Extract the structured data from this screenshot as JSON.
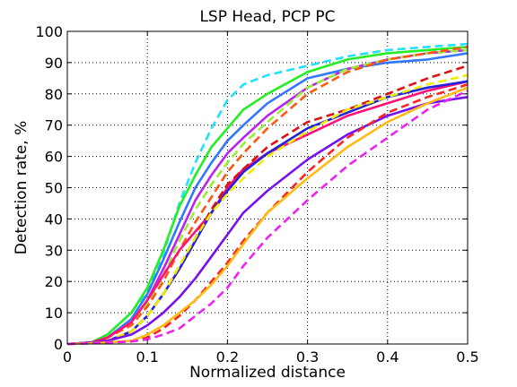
{
  "chart_data": {
    "type": "line",
    "title": "LSP Head, PCP PC",
    "xlabel": "Normalized distance",
    "ylabel": "Detection rate, %",
    "xlim": [
      0,
      0.5
    ],
    "ylim": [
      0,
      100
    ],
    "xticks": [
      "0",
      "0.1",
      "0.2",
      "0.3",
      "0.4",
      "0.5"
    ],
    "yticks": [
      "0",
      "10",
      "20",
      "30",
      "40",
      "50",
      "60",
      "70",
      "80",
      "90",
      "100"
    ],
    "grid": true,
    "legend": "none",
    "series": [
      {
        "color": "#22e0ff",
        "style": "dashed",
        "x": [
          0,
          0.03,
          0.05,
          0.08,
          0.1,
          0.12,
          0.14,
          0.16,
          0.18,
          0.2,
          0.22,
          0.25,
          0.3,
          0.35,
          0.4,
          0.45,
          0.5
        ],
        "y": [
          0,
          0.5,
          3,
          10,
          17,
          29,
          45,
          58,
          69,
          78,
          83,
          86,
          89,
          92,
          94,
          95,
          96
        ]
      },
      {
        "color": "#22ee22",
        "style": "solid",
        "x": [
          0,
          0.03,
          0.05,
          0.08,
          0.1,
          0.12,
          0.14,
          0.16,
          0.18,
          0.2,
          0.22,
          0.25,
          0.3,
          0.35,
          0.4,
          0.45,
          0.5
        ],
        "y": [
          0,
          0.5,
          3,
          10,
          18,
          30,
          44,
          54,
          63,
          69,
          75,
          80,
          87,
          91,
          93,
          94,
          95
        ]
      },
      {
        "color": "#3377ff",
        "style": "solid",
        "x": [
          0,
          0.03,
          0.05,
          0.08,
          0.1,
          0.12,
          0.14,
          0.16,
          0.18,
          0.2,
          0.22,
          0.25,
          0.3,
          0.35,
          0.4,
          0.45,
          0.5
        ],
        "y": [
          0,
          0.5,
          2,
          8,
          16,
          27,
          39,
          50,
          58,
          65,
          70,
          77,
          85,
          88,
          90,
          91,
          93
        ]
      },
      {
        "color": "#bb22ee",
        "style": "solid",
        "x": [
          0,
          0.03,
          0.05,
          0.08,
          0.1,
          0.12,
          0.14,
          0.16,
          0.18,
          0.2,
          0.22,
          0.25,
          0.3,
          0.35,
          0.4,
          0.45,
          0.5
        ],
        "y": [
          0,
          0.5,
          2,
          7,
          14,
          24,
          35,
          46,
          54,
          61,
          66,
          73,
          82,
          88,
          91,
          93,
          94
        ]
      },
      {
        "color": "#99ee33",
        "style": "dashed",
        "x": [
          0,
          0.03,
          0.05,
          0.08,
          0.1,
          0.12,
          0.14,
          0.16,
          0.18,
          0.2,
          0.22,
          0.25,
          0.3,
          0.35,
          0.4,
          0.45,
          0.5
        ],
        "y": [
          0,
          0.5,
          2,
          7,
          13,
          22,
          33,
          43,
          51,
          58,
          64,
          71,
          82,
          88,
          91,
          93,
          94
        ]
      },
      {
        "color": "#ff5511",
        "style": "dashed",
        "x": [
          0,
          0.03,
          0.05,
          0.08,
          0.1,
          0.12,
          0.14,
          0.16,
          0.18,
          0.2,
          0.22,
          0.25,
          0.3,
          0.35,
          0.4,
          0.45,
          0.5
        ],
        "y": [
          0,
          0.5,
          2,
          6,
          12,
          20,
          30,
          39,
          47,
          55,
          61,
          69,
          80,
          87,
          91,
          93,
          95
        ]
      },
      {
        "color": "#ff1177",
        "style": "solid",
        "x": [
          0,
          0.03,
          0.05,
          0.08,
          0.1,
          0.12,
          0.14,
          0.16,
          0.18,
          0.2,
          0.22,
          0.25,
          0.3,
          0.35,
          0.4,
          0.45,
          0.5
        ],
        "y": [
          0,
          0.5,
          2,
          7,
          14,
          22,
          30,
          36,
          42,
          50,
          56,
          61,
          67,
          73,
          77,
          81,
          84
        ]
      },
      {
        "color": "#dd1111",
        "style": "dashed",
        "x": [
          0,
          0.03,
          0.05,
          0.08,
          0.1,
          0.12,
          0.14,
          0.16,
          0.18,
          0.2,
          0.22,
          0.25,
          0.3,
          0.35,
          0.4,
          0.45,
          0.5
        ],
        "y": [
          0,
          0.5,
          1,
          4,
          9,
          16,
          25,
          34,
          43,
          51,
          56,
          63,
          71,
          75,
          80,
          85,
          89
        ]
      },
      {
        "color": "#2222dd",
        "style": "solid",
        "x": [
          0,
          0.03,
          0.05,
          0.08,
          0.1,
          0.12,
          0.14,
          0.16,
          0.18,
          0.2,
          0.22,
          0.25,
          0.3,
          0.35,
          0.4,
          0.45,
          0.5
        ],
        "y": [
          0,
          0.5,
          1,
          4,
          9,
          16,
          24,
          33,
          42,
          49,
          55,
          61,
          69,
          74,
          79,
          82,
          84
        ]
      },
      {
        "color": "#eeee00",
        "style": "dashed",
        "x": [
          0,
          0.03,
          0.05,
          0.08,
          0.1,
          0.12,
          0.14,
          0.16,
          0.18,
          0.2,
          0.22,
          0.25,
          0.3,
          0.35,
          0.4,
          0.45,
          0.5
        ],
        "y": [
          0,
          0.5,
          1,
          4,
          9,
          16,
          25,
          34,
          42,
          48,
          53,
          60,
          68,
          75,
          79,
          83,
          86
        ]
      },
      {
        "color": "#7711ee",
        "style": "solid",
        "x": [
          0,
          0.03,
          0.05,
          0.08,
          0.1,
          0.12,
          0.14,
          0.16,
          0.18,
          0.2,
          0.22,
          0.25,
          0.3,
          0.35,
          0.4,
          0.45,
          0.5
        ],
        "y": [
          0,
          0.5,
          1,
          3,
          6,
          10,
          15,
          21,
          28,
          35,
          42,
          49,
          59,
          67,
          73,
          77,
          79
        ]
      },
      {
        "color": "#ff2222",
        "style": "dashed",
        "x": [
          0,
          0.03,
          0.05,
          0.08,
          0.1,
          0.12,
          0.14,
          0.16,
          0.18,
          0.2,
          0.22,
          0.25,
          0.3,
          0.35,
          0.4,
          0.45,
          0.5
        ],
        "y": [
          0,
          0.3,
          0.5,
          1,
          2,
          5,
          9,
          14,
          20,
          26,
          33,
          42,
          55,
          66,
          74,
          79,
          83
        ]
      },
      {
        "color": "#ffbb11",
        "style": "solid",
        "x": [
          0,
          0.03,
          0.05,
          0.08,
          0.1,
          0.12,
          0.14,
          0.16,
          0.18,
          0.2,
          0.22,
          0.25,
          0.3,
          0.35,
          0.4,
          0.45,
          0.5
        ],
        "y": [
          0,
          0.3,
          0.5,
          1,
          3,
          6,
          10,
          14,
          19,
          25,
          32,
          42,
          53,
          63,
          71,
          77,
          82
        ]
      },
      {
        "color": "#ee22ee",
        "style": "dashed",
        "x": [
          0,
          0.03,
          0.05,
          0.08,
          0.1,
          0.12,
          0.14,
          0.16,
          0.18,
          0.2,
          0.22,
          0.25,
          0.3,
          0.35,
          0.4,
          0.45,
          0.5
        ],
        "y": [
          0,
          0.2,
          0.4,
          0.8,
          1.5,
          3,
          5,
          9,
          13,
          18,
          25,
          34,
          46,
          57,
          66,
          75,
          81
        ]
      }
    ]
  }
}
